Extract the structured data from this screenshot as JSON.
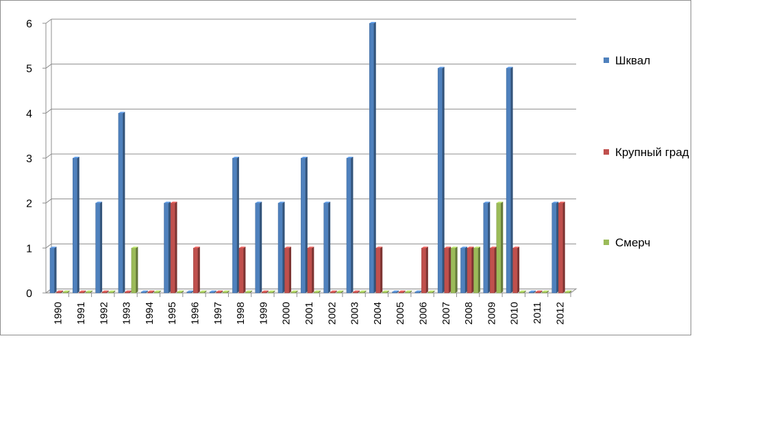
{
  "chart_data": {
    "type": "bar",
    "categories": [
      "1990",
      "1991",
      "1992",
      "1993",
      "1994",
      "1995",
      "1996",
      "1997",
      "1998",
      "1999",
      "2000",
      "2001",
      "2002",
      "2003",
      "2004",
      "2005",
      "2006",
      "2007",
      "2008",
      "2009",
      "2010",
      "2011",
      "2012"
    ],
    "series": [
      {
        "name": "Шквал",
        "color": "#4f81bd",
        "values": [
          1,
          3,
          2,
          4,
          0,
          2,
          0,
          0,
          3,
          2,
          2,
          3,
          2,
          3,
          6,
          0,
          0,
          5,
          1,
          2,
          5,
          0,
          2
        ]
      },
      {
        "name": "Крупный град",
        "color": "#c0504d",
        "values": [
          0,
          0,
          0,
          0,
          0,
          2,
          1,
          0,
          1,
          0,
          1,
          1,
          0,
          0,
          1,
          0,
          1,
          1,
          1,
          1,
          1,
          0,
          2
        ]
      },
      {
        "name": "Смерч",
        "color": "#9bbb59",
        "values": [
          0,
          0,
          0,
          1,
          0,
          0,
          0,
          0,
          0,
          0,
          0,
          0,
          0,
          0,
          0,
          0,
          0,
          1,
          1,
          2,
          0,
          0,
          0
        ]
      }
    ],
    "ylim": [
      0,
      6
    ],
    "yticks": [
      "0",
      "1",
      "2",
      "3",
      "4",
      "5",
      "6"
    ],
    "grid": true,
    "legend_position": "right",
    "style": "3d-clustered-column"
  }
}
